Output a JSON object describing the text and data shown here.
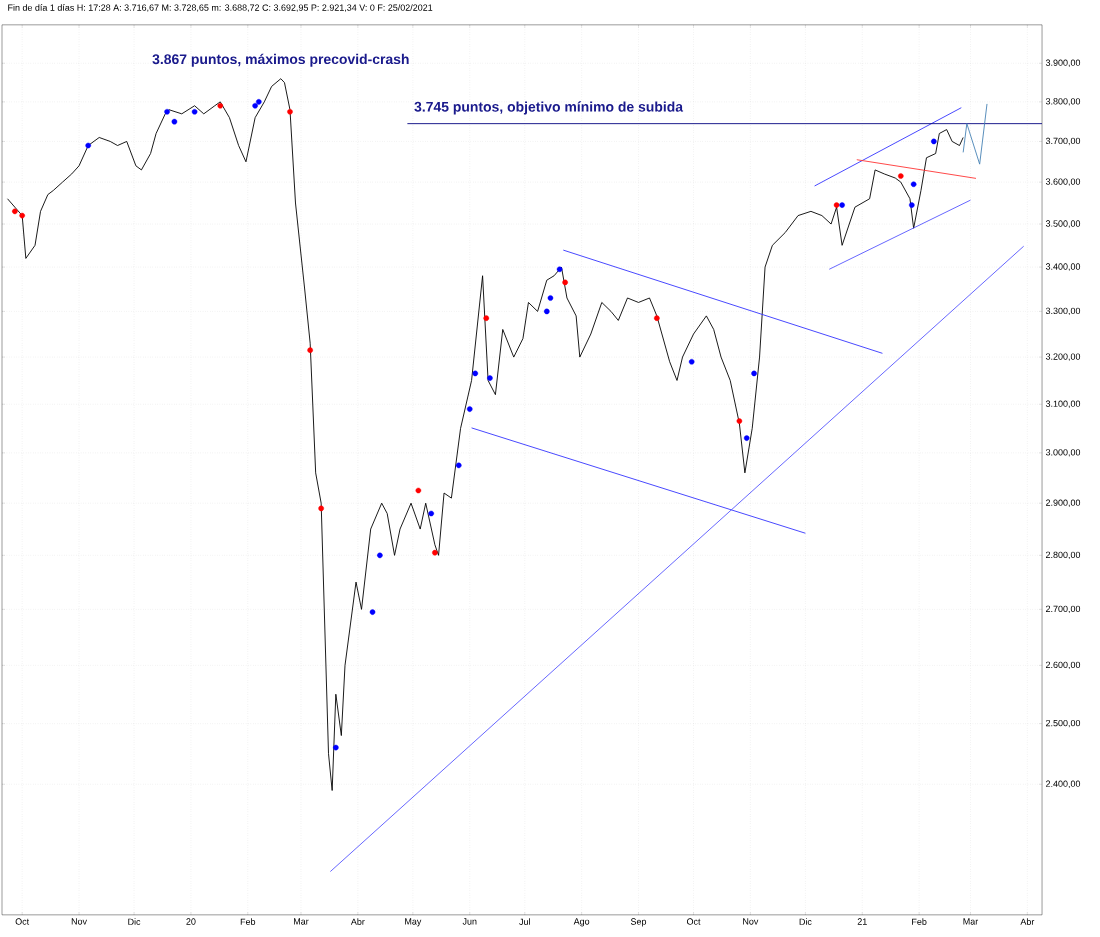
{
  "chart_data": {
    "type": "line",
    "subtitle": "Fin de día 1 días H: 17:28 A: 3.716,67 M: 3.728,65 m: 3.688,72 C: 3.692,95 P: 2.921,34 V: 0 F: 25/02/2021",
    "annotations": [
      {
        "text": "3.867 puntos, máximos precovid-crash",
        "x": "2020-02-19",
        "y": 3867
      },
      {
        "text": "3.745 puntos, objetivo mínimo de subida",
        "x": "2020-05-01",
        "y": 3745
      }
    ],
    "x": [
      "2019-09-23",
      "2019-09-27",
      "2019-10-01",
      "2019-10-03",
      "2019-10-08",
      "2019-10-11",
      "2019-10-15",
      "2019-10-18",
      "2019-10-23",
      "2019-10-28",
      "2019-11-01",
      "2019-11-06",
      "2019-11-12",
      "2019-11-18",
      "2019-11-22",
      "2019-11-27",
      "2019-12-02",
      "2019-12-05",
      "2019-12-10",
      "2019-12-13",
      "2019-12-18",
      "2019-12-20",
      "2019-12-27",
      "2020-01-03",
      "2020-01-08",
      "2020-01-14",
      "2020-01-17",
      "2020-01-22",
      "2020-01-27",
      "2020-01-31",
      "2020-02-05",
      "2020-02-10",
      "2020-02-14",
      "2020-02-19",
      "2020-02-21",
      "2020-02-24",
      "2020-02-27",
      "2020-03-03",
      "2020-03-06",
      "2020-03-09",
      "2020-03-12",
      "2020-03-16",
      "2020-03-18",
      "2020-03-20",
      "2020-03-23",
      "2020-03-25",
      "2020-03-31",
      "2020-04-03",
      "2020-04-08",
      "2020-04-14",
      "2020-04-17",
      "2020-04-21",
      "2020-04-24",
      "2020-04-30",
      "2020-05-05",
      "2020-05-08",
      "2020-05-13",
      "2020-05-15",
      "2020-05-18",
      "2020-05-22",
      "2020-05-27",
      "2020-06-02",
      "2020-06-08",
      "2020-06-11",
      "2020-06-15",
      "2020-06-19",
      "2020-06-25",
      "2020-06-30",
      "2020-07-03",
      "2020-07-08",
      "2020-07-13",
      "2020-07-17",
      "2020-07-21",
      "2020-07-24",
      "2020-07-29",
      "2020-07-31",
      "2020-08-06",
      "2020-08-12",
      "2020-08-17",
      "2020-08-21",
      "2020-08-26",
      "2020-09-01",
      "2020-09-07",
      "2020-09-11",
      "2020-09-18",
      "2020-09-22",
      "2020-09-25",
      "2020-10-01",
      "2020-10-08",
      "2020-10-12",
      "2020-10-16",
      "2020-10-21",
      "2020-10-26",
      "2020-10-29",
      "2020-11-02",
      "2020-11-06",
      "2020-11-09",
      "2020-11-13",
      "2020-11-20",
      "2020-11-27",
      "2020-12-04",
      "2020-12-10",
      "2020-12-15",
      "2020-12-18",
      "2020-12-21",
      "2020-12-28",
      "2021-01-05",
      "2021-01-08",
      "2021-01-13",
      "2021-01-19",
      "2021-01-22",
      "2021-01-27",
      "2021-01-29",
      "2021-02-02",
      "2021-02-05",
      "2021-02-10",
      "2021-02-12",
      "2021-02-16",
      "2021-02-19",
      "2021-02-23",
      "2021-02-25"
    ],
    "series": [
      {
        "color": "#000000",
        "marker": "none",
        "values": [
          3560,
          3540,
          3520,
          3420,
          3450,
          3530,
          3570,
          3580,
          3600,
          3620,
          3640,
          3690,
          3710,
          3700,
          3690,
          3700,
          3640,
          3630,
          3670,
          3720,
          3770,
          3780,
          3770,
          3790,
          3770,
          3790,
          3800,
          3760,
          3690,
          3650,
          3760,
          3800,
          3840,
          3860,
          3850,
          3780,
          3550,
          3350,
          3230,
          2960,
          2900,
          2450,
          2390,
          2550,
          2480,
          2600,
          2750,
          2700,
          2850,
          2900,
          2880,
          2800,
          2850,
          2900,
          2850,
          2900,
          2820,
          2800,
          2920,
          2910,
          3050,
          3150,
          3380,
          3150,
          3120,
          3260,
          3200,
          3240,
          3320,
          3300,
          3370,
          3380,
          3400,
          3330,
          3290,
          3200,
          3250,
          3320,
          3300,
          3280,
          3330,
          3320,
          3330,
          3290,
          3190,
          3150,
          3200,
          3250,
          3290,
          3260,
          3200,
          3150,
          3060,
          2960,
          3050,
          3200,
          3400,
          3450,
          3480,
          3520,
          3530,
          3520,
          3500,
          3540,
          3450,
          3540,
          3560,
          3630,
          3620,
          3610,
          3600,
          3560,
          3490,
          3580,
          3660,
          3670,
          3720,
          3730,
          3700,
          3690,
          3710
        ]
      },
      {
        "type": "scatter",
        "color": "#ff0000",
        "marker": "circle",
        "x": [
          "2019-09-27",
          "2019-10-01",
          "2020-01-17",
          "2020-02-24",
          "2020-03-06",
          "2020-03-12",
          "2020-05-04",
          "2020-05-13",
          "2020-06-10",
          "2020-07-23",
          "2020-09-11",
          "2020-10-26",
          "2020-12-18",
          "2021-01-22"
        ],
        "values": [
          3530,
          3520,
          3790,
          3775,
          3215,
          2890,
          2925,
          2805,
          3285,
          3365,
          3285,
          3065,
          3545,
          3615
        ]
      },
      {
        "type": "scatter",
        "color": "#0000ff",
        "marker": "circle",
        "x": [
          "2019-11-06",
          "2019-12-19",
          "2019-12-23",
          "2020-01-03",
          "2020-02-05",
          "2020-02-07",
          "2020-03-20",
          "2020-04-09",
          "2020-04-13",
          "2020-05-11",
          "2020-05-26",
          "2020-06-01",
          "2020-06-04",
          "2020-06-12",
          "2020-07-13",
          "2020-07-15",
          "2020-07-20",
          "2020-09-30",
          "2020-10-30",
          "2020-11-03",
          "2020-12-21",
          "2021-01-28",
          "2021-01-29",
          "2021-02-09"
        ],
        "values": [
          3690,
          3775,
          3750,
          3775,
          3790,
          3800,
          2460,
          2695,
          2800,
          2880,
          2975,
          3090,
          3165,
          3155,
          3300,
          3330,
          3395,
          3190,
          3030,
          3165,
          3545,
          3545,
          3595,
          3700
        ]
      },
      {
        "color": "#3333ff",
        "marker": "none",
        "x": [
          "2020-07-22",
          "2021-01-12"
        ],
        "values": [
          3439,
          3208
        ]
      },
      {
        "color": "#3333ff",
        "marker": "none",
        "x": [
          "2020-06-02",
          "2020-12-01"
        ],
        "values": [
          3051,
          2842
        ]
      },
      {
        "color": "#5555ff",
        "marker": "none",
        "x": [
          "2020-03-17",
          "2021-03-30"
        ],
        "values": [
          2263,
          3448
        ]
      },
      {
        "color": "#3333ff",
        "marker": "none",
        "x": [
          "2020-12-06",
          "2021-02-24"
        ],
        "values": [
          3591,
          3785
        ]
      },
      {
        "color": "#5555ff",
        "marker": "none",
        "x": [
          "2020-12-14",
          "2021-03-01"
        ],
        "values": [
          3395,
          3557
        ]
      },
      {
        "color": "#ff3333",
        "marker": "none",
        "x": [
          "2020-12-29",
          "2021-03-04"
        ],
        "values": [
          3655,
          3609
        ]
      },
      {
        "color": "#000080",
        "marker": "none",
        "x": [
          "2020-04-28",
          "2021-04-09"
        ],
        "values": [
          3745,
          3745
        ]
      },
      {
        "color": "#4682b4",
        "marker": "none",
        "x": [
          "2021-02-25",
          "2021-02-27",
          "2021-03-06",
          "2021-03-10"
        ],
        "values": [
          3673,
          3745,
          3644,
          3795
        ]
      }
    ],
    "xlim": [
      "2019-09-20",
      "2021-04-09"
    ],
    "xticks": [
      {
        "value": "2019-10-01",
        "label": "Oct"
      },
      {
        "value": "2019-11-01",
        "label": "Nov"
      },
      {
        "value": "2019-12-01",
        "label": "Dic"
      },
      {
        "value": "2020-01-01",
        "label": "20"
      },
      {
        "value": "2020-02-01",
        "label": "Feb"
      },
      {
        "value": "2020-03-01",
        "label": "Mar"
      },
      {
        "value": "2020-04-01",
        "label": "Abr"
      },
      {
        "value": "2020-05-01",
        "label": "May"
      },
      {
        "value": "2020-06-01",
        "label": "Jun"
      },
      {
        "value": "2020-07-01",
        "label": "Jul"
      },
      {
        "value": "2020-08-01",
        "label": "Ago"
      },
      {
        "value": "2020-09-01",
        "label": "Sep"
      },
      {
        "value": "2020-10-01",
        "label": "Oct"
      },
      {
        "value": "2020-11-01",
        "label": "Nov"
      },
      {
        "value": "2020-12-01",
        "label": "Dic"
      },
      {
        "value": "2021-01-01",
        "label": "21"
      },
      {
        "value": "2021-02-01",
        "label": "Feb"
      },
      {
        "value": "2021-03-01",
        "label": "Mar"
      },
      {
        "value": "2021-04-01",
        "label": "Abr"
      }
    ],
    "ylim": [
      2198,
      4002
    ],
    "yticks": [
      {
        "value": 2400,
        "label": "2.400,00"
      },
      {
        "value": 2500,
        "label": "2.500,00"
      },
      {
        "value": 2600,
        "label": "2.600,00"
      },
      {
        "value": 2700,
        "label": "2.700,00"
      },
      {
        "value": 2800,
        "label": "2.800,00"
      },
      {
        "value": 2900,
        "label": "2.900,00"
      },
      {
        "value": 3000,
        "label": "3.000,00"
      },
      {
        "value": 3100,
        "label": "3.100,00"
      },
      {
        "value": 3200,
        "label": "3.200,00"
      },
      {
        "value": 3300,
        "label": "3.300,00"
      },
      {
        "value": 3400,
        "label": "3.400,00"
      },
      {
        "value": 3500,
        "label": "3.500,00"
      },
      {
        "value": 3600,
        "label": "3.600,00"
      },
      {
        "value": 3700,
        "label": "3.700,00"
      },
      {
        "value": 3800,
        "label": "3.800,00"
      },
      {
        "value": 3900,
        "label": "3.900,00"
      }
    ],
    "log": true,
    "grid": true
  }
}
